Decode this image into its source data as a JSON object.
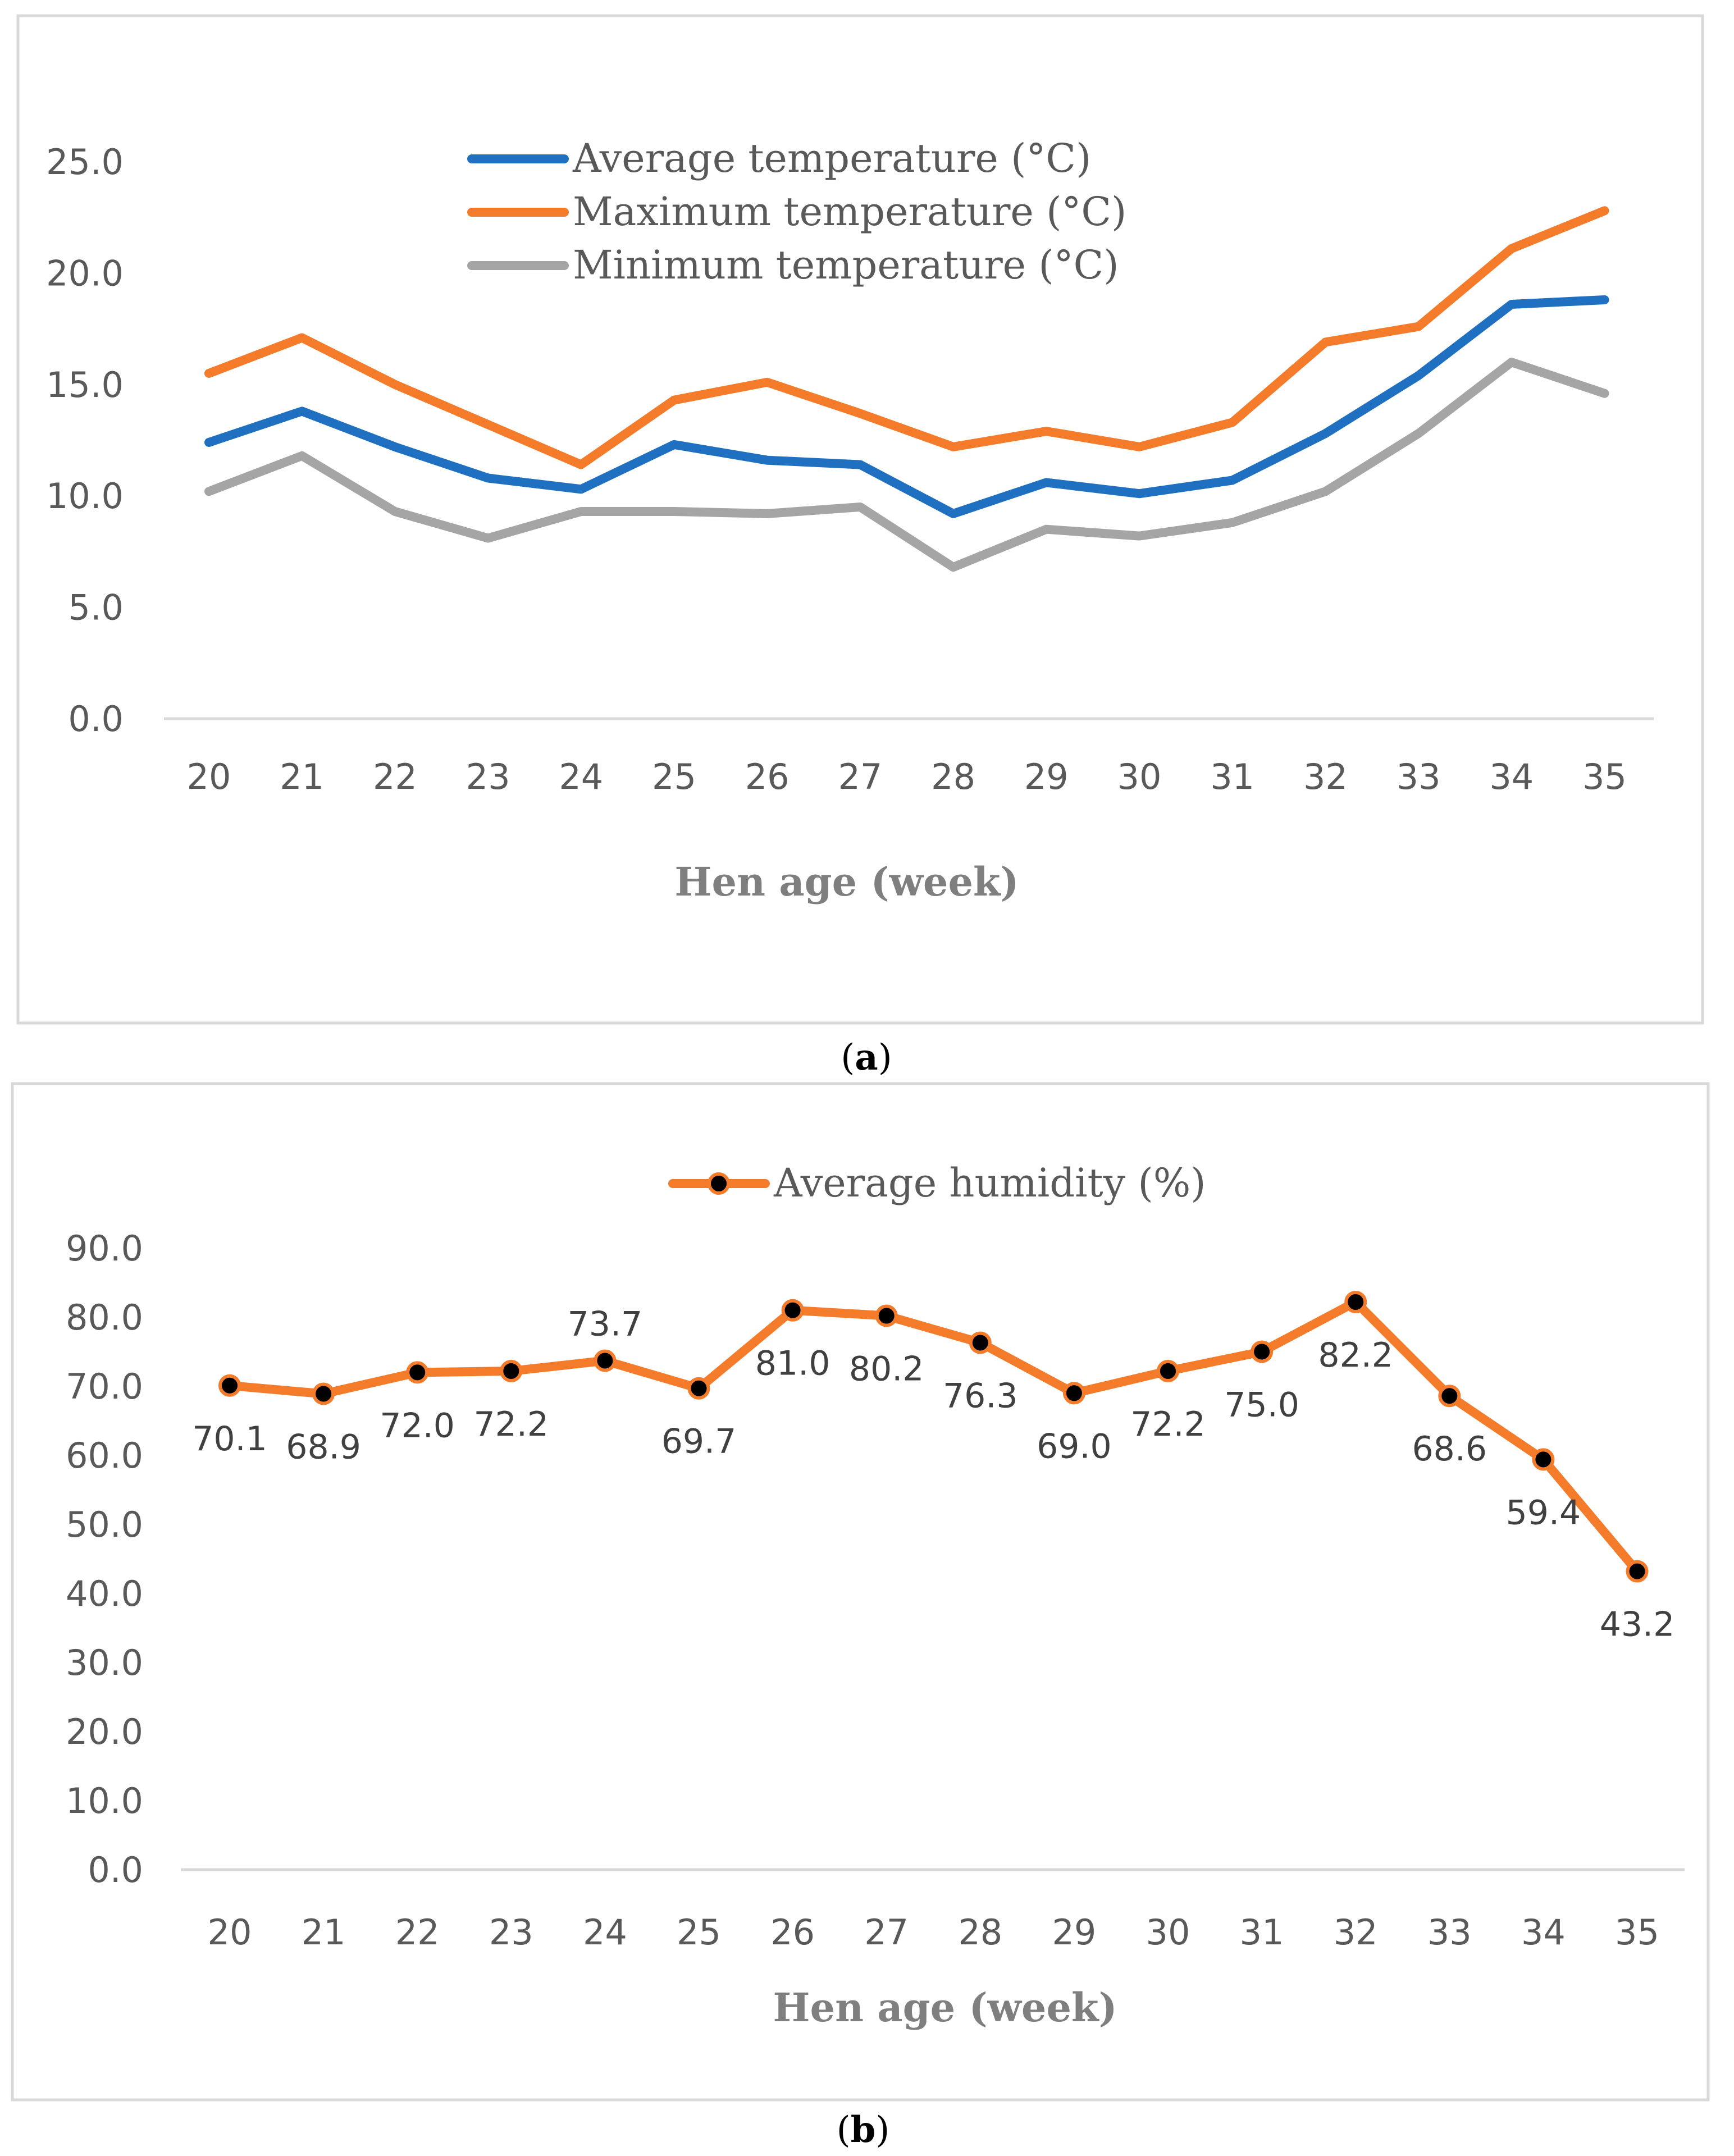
{
  "chart_data": [
    {
      "panel": "(a)",
      "caption": "a",
      "type": "line",
      "title": "",
      "xlabel": "Hen age (week)",
      "ylabel": "",
      "ylim": [
        0,
        25
      ],
      "yticks": [
        "0.0",
        "5.0",
        "10.0",
        "15.0",
        "20.0",
        "25.0"
      ],
      "categories": [
        "20",
        "21",
        "22",
        "23",
        "24",
        "25",
        "26",
        "27",
        "28",
        "29",
        "30",
        "31",
        "32",
        "33",
        "34",
        "35"
      ],
      "legend_position": "top-center",
      "series": [
        {
          "name": "Average temperature (°C)",
          "color": "#1f70c1",
          "values": [
            12.4,
            13.8,
            12.2,
            10.8,
            10.3,
            12.3,
            11.6,
            11.4,
            9.2,
            10.6,
            10.1,
            10.7,
            12.8,
            15.4,
            18.6,
            18.8
          ]
        },
        {
          "name": "Maximum temperature (°C)",
          "color": "#f47b2a",
          "values": [
            15.5,
            17.1,
            15.0,
            13.2,
            11.4,
            14.3,
            15.1,
            13.7,
            12.2,
            12.9,
            12.2,
            13.3,
            16.9,
            17.6,
            21.1,
            22.8
          ]
        },
        {
          "name": "Minimum temperature (°C)",
          "color": "#a5a5a5",
          "values": [
            10.2,
            11.8,
            9.3,
            8.1,
            9.3,
            9.3,
            9.2,
            9.5,
            6.8,
            8.5,
            8.2,
            8.8,
            10.2,
            12.8,
            16.0,
            14.6
          ]
        }
      ]
    },
    {
      "panel": "(b)",
      "caption": "b",
      "type": "line",
      "title": "",
      "xlabel": "Hen age (week)",
      "ylabel": "",
      "ylim": [
        0,
        90
      ],
      "yticks": [
        "0.0",
        "10.0",
        "20.0",
        "30.0",
        "40.0",
        "50.0",
        "60.0",
        "70.0",
        "80.0",
        "90.0"
      ],
      "categories": [
        "20",
        "21",
        "22",
        "23",
        "24",
        "25",
        "26",
        "27",
        "28",
        "29",
        "30",
        "31",
        "32",
        "33",
        "34",
        "35"
      ],
      "legend_position": "top-center",
      "series": [
        {
          "name": "Average humidity (%)",
          "color": "#f47b2a",
          "marker_color": "#000000",
          "values": [
            70.1,
            68.9,
            72.0,
            72.2,
            73.7,
            69.7,
            81.0,
            80.2,
            76.3,
            69.0,
            72.2,
            75.0,
            82.2,
            68.6,
            59.4,
            43.2
          ],
          "labels": [
            "70.1",
            "68.9",
            "72.0",
            "72.2",
            "73.7",
            "69.7",
            "81.0",
            "80.2",
            "76.3",
            "69.0",
            "72.2",
            "75.0",
            "82.2",
            "68.6",
            "59.4",
            "43.2"
          ]
        }
      ]
    }
  ]
}
